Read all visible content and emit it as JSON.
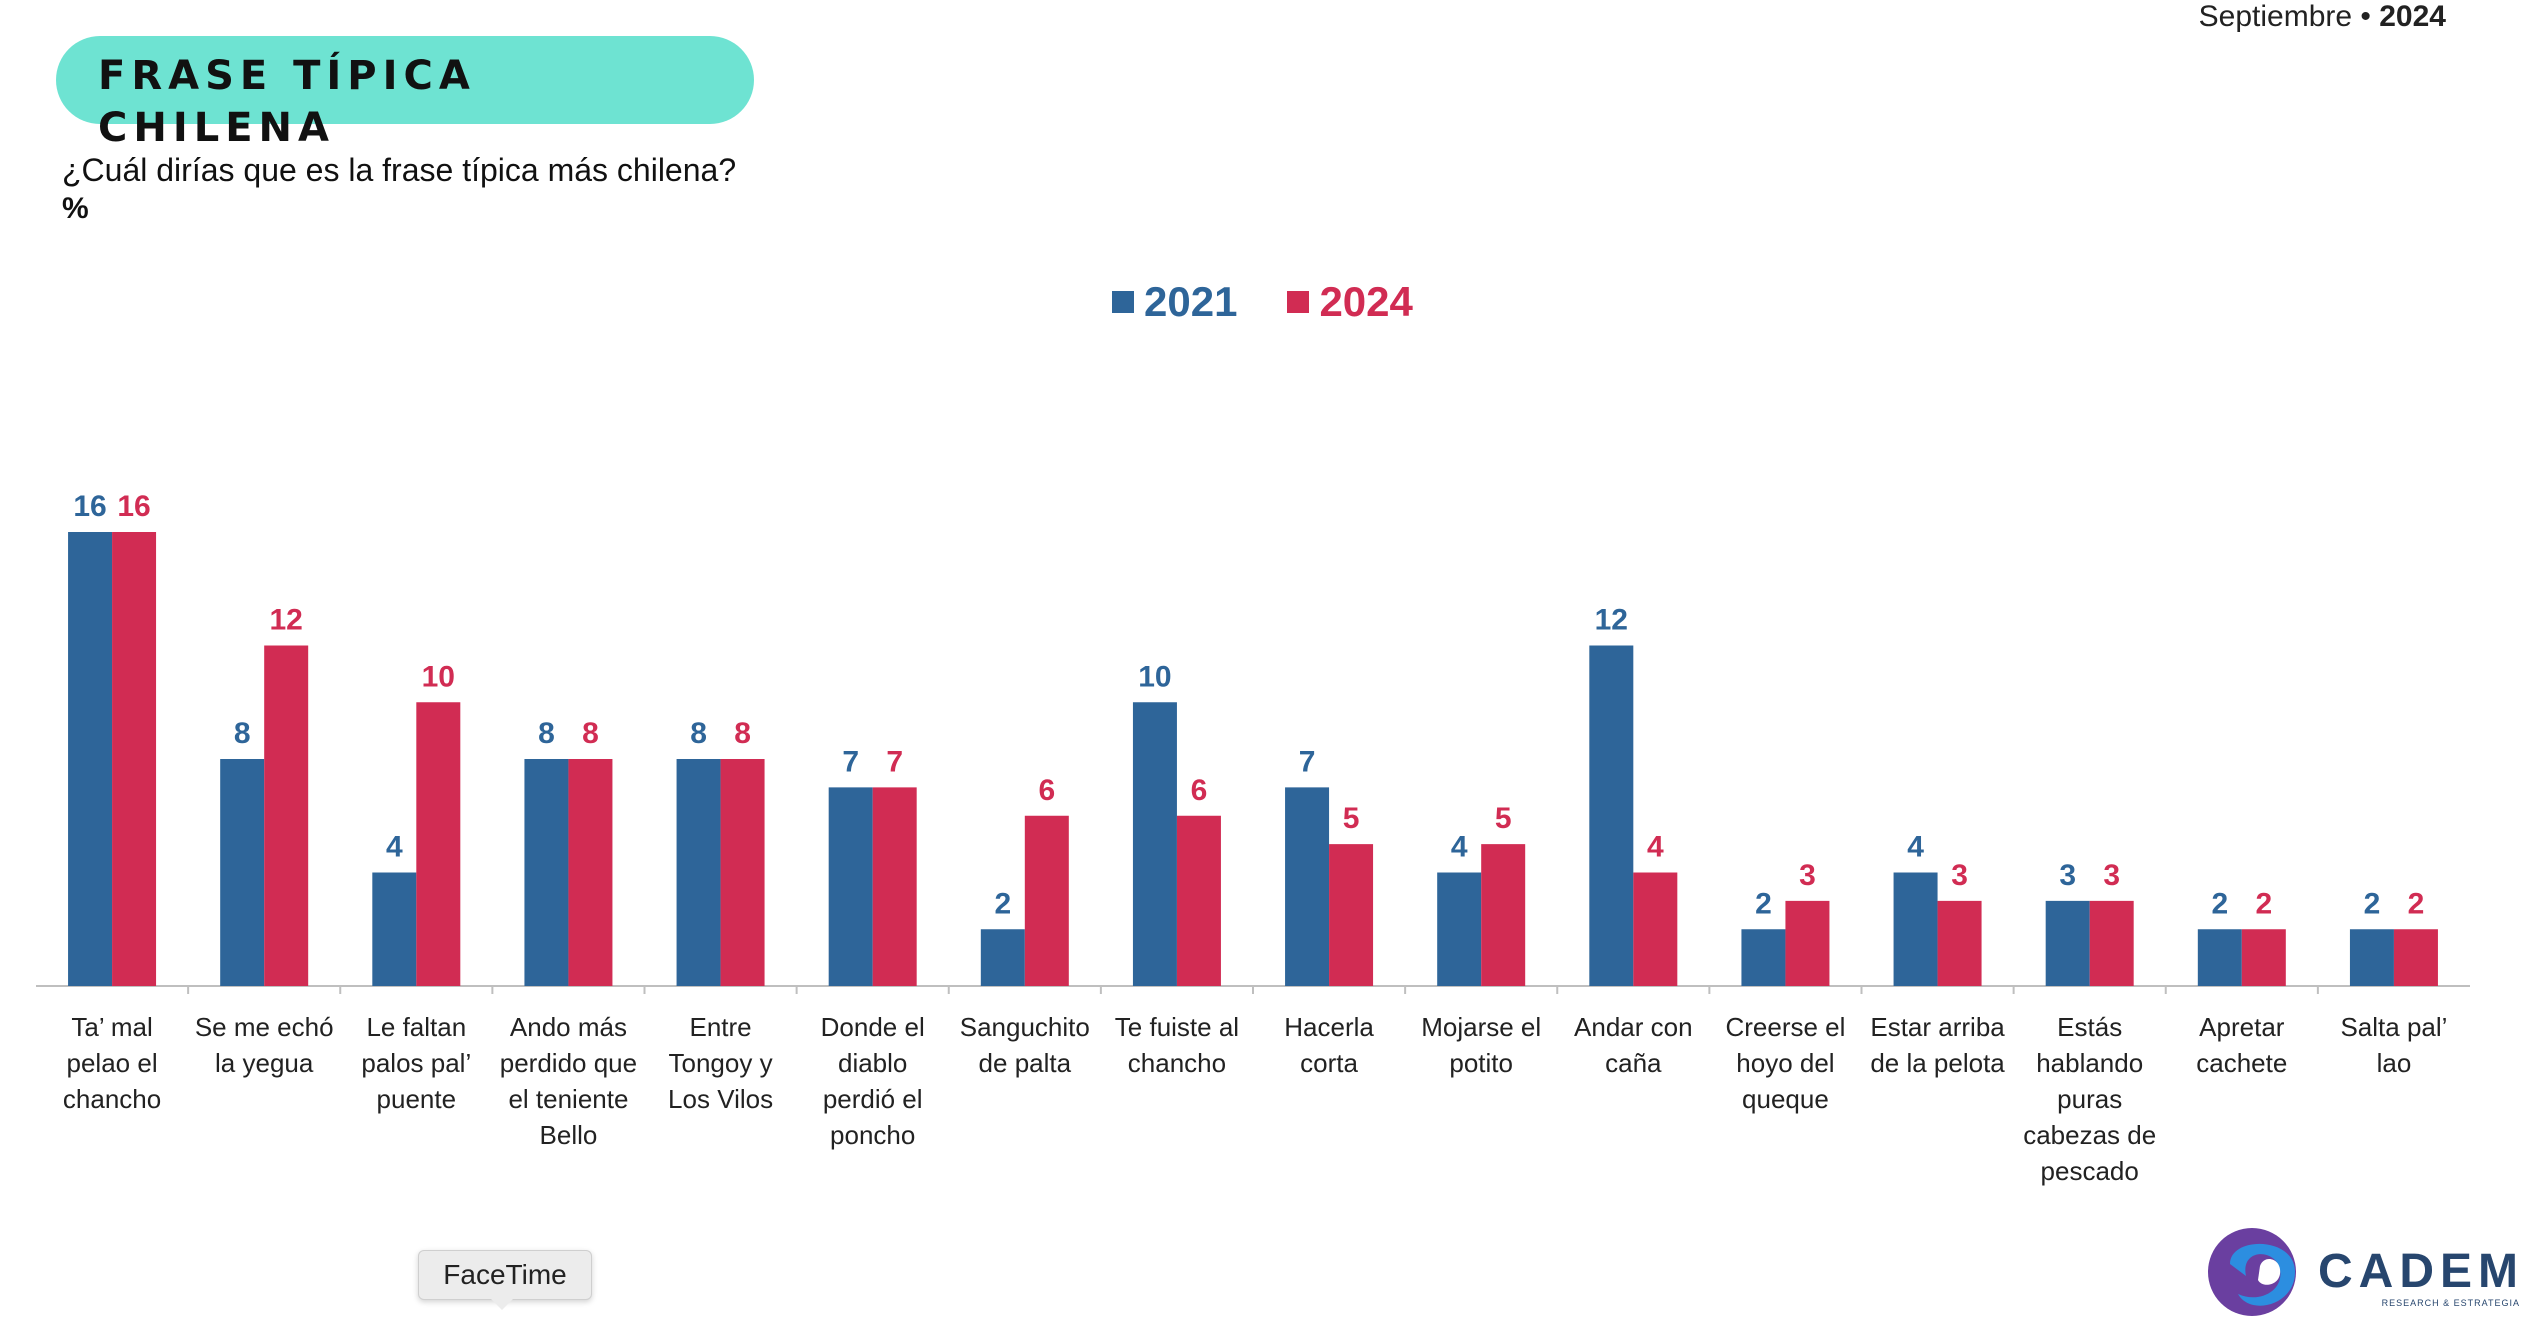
{
  "header": {
    "date_month": "Septiembre",
    "date_sep": " • ",
    "date_year": "2024",
    "title": "FRASE TÍPICA CHILENA",
    "question": "¿Cuál dirías que es la frase típica más chilena?",
    "unit": "%"
  },
  "colors": {
    "series_2021": "#2e6599",
    "series_2024": "#d12c53",
    "pill": "#6ee3d2"
  },
  "chart_data": {
    "type": "bar",
    "categories": [
      "Ta’ mal pelao el chancho",
      "Se me echó la yegua",
      "Le faltan palos pal’ puente",
      "Ando más perdido que el teniente Bello",
      "Entre Tongoy y Los Vilos",
      "Donde el diablo perdió el poncho",
      "Sanguchito de palta",
      "Te fuiste al chancho",
      "Hacerla corta",
      "Mojarse el potito",
      "Andar con caña",
      "Creerse el hoyo del queque",
      "Estar arriba de la pelota",
      "Estás hablando puras cabezas de pescado",
      "Apretar cachete",
      "Salta pal’ lao"
    ],
    "category_lines": [
      [
        "Ta’ mal",
        "pelao el",
        "chancho"
      ],
      [
        "Se me echó",
        "la yegua"
      ],
      [
        "Le faltan",
        "palos pal’",
        "puente"
      ],
      [
        "Ando más",
        "perdido que",
        "el teniente",
        "Bello"
      ],
      [
        "Entre",
        "Tongoy y",
        "Los Vilos"
      ],
      [
        "Donde el",
        "diablo",
        "perdió el",
        "poncho"
      ],
      [
        "Sanguchito",
        "de palta"
      ],
      [
        "Te fuiste al",
        "chancho"
      ],
      [
        "Hacerla",
        "corta"
      ],
      [
        "Mojarse el",
        "potito"
      ],
      [
        "Andar con",
        "caña"
      ],
      [
        "Creerse el",
        "hoyo del",
        "queque"
      ],
      [
        "Estar arriba",
        "de la pelota"
      ],
      [
        "Estás",
        "hablando",
        "puras",
        "cabezas de",
        "pescado"
      ],
      [
        "Apretar",
        "cachete"
      ],
      [
        "Salta pal’",
        "lao"
      ]
    ],
    "series": [
      {
        "name": "2021",
        "values": [
          16,
          8,
          4,
          8,
          8,
          7,
          2,
          10,
          7,
          4,
          12,
          2,
          4,
          3,
          2,
          2
        ]
      },
      {
        "name": "2024",
        "values": [
          16,
          12,
          10,
          8,
          8,
          7,
          6,
          6,
          5,
          5,
          4,
          3,
          3,
          3,
          2,
          2
        ]
      }
    ],
    "ylim": [
      0,
      16
    ],
    "grid": false,
    "legend_position": "top-center"
  },
  "overlay": {
    "tooltip": "FaceTime"
  },
  "logo": {
    "name": "CADEM",
    "tagline": "RESEARCH & ESTRATEGIA"
  }
}
